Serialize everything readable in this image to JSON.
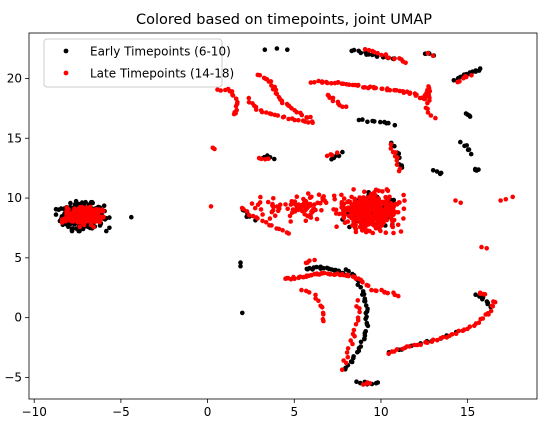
{
  "chart_data": {
    "type": "scatter",
    "title": "Colored based on timepoints, joint UMAP",
    "xlabel": "",
    "ylabel": "",
    "xlim": [
      -10.3,
      19.0
    ],
    "ylim": [
      -6.8,
      23.8
    ],
    "xticks": [
      -10,
      -5,
      0,
      5,
      10,
      15
    ],
    "yticks": [
      -5,
      0,
      5,
      10,
      15,
      20
    ],
    "xtick_labels": [
      "−10",
      "−5",
      "0",
      "5",
      "10",
      "15"
    ],
    "ytick_labels": [
      "−5",
      "0",
      "5",
      "10",
      "15",
      "20"
    ],
    "grid": false,
    "legend_position": "top-left",
    "series": [
      {
        "name": "Early Timepoints (6-10)",
        "color": "#000000",
        "clusters": [
          {
            "shape": "blob",
            "center": [
              -7.2,
              8.5
            ],
            "spread": [
              1.1,
              0.9
            ],
            "count": 320
          },
          {
            "shape": "blob",
            "center": [
              9.6,
              8.8
            ],
            "spread": [
              1.3,
              1.2
            ],
            "count": 110
          },
          {
            "shape": "points",
            "points": [
              [
                -4.4,
                8.4
              ],
              [
                2.0,
                0.4
              ],
              [
                1.9,
                4.6
              ],
              [
                1.9,
                4.3
              ],
              [
                3.3,
                22.4
              ],
              [
                4.0,
                22.5
              ],
              [
                4.6,
                22.4
              ]
            ]
          }
        ],
        "paths": [
          {
            "points": [
              [
                8.0,
                4.0
              ],
              [
                8.6,
                3.2
              ],
              [
                9.0,
                2.0
              ],
              [
                9.2,
                0.5
              ],
              [
                9.2,
                -1.0
              ],
              [
                8.8,
                -2.5
              ],
              [
                8.2,
                -3.8
              ],
              [
                7.8,
                -4.5
              ]
            ],
            "count": 40
          },
          {
            "points": [
              [
                5.6,
                4.0
              ],
              [
                6.5,
                4.2
              ],
              [
                7.6,
                3.9
              ],
              [
                8.0,
                3.5
              ]
            ],
            "count": 20
          },
          {
            "points": [
              [
                8.3,
                22.4
              ],
              [
                9.3,
                22.0
              ],
              [
                10.3,
                21.8
              ],
              [
                11.0,
                21.6
              ]
            ],
            "count": 16
          },
          {
            "points": [
              [
                12.5,
                22.1
              ],
              [
                13.0,
                22.0
              ]
            ],
            "count": 5
          },
          {
            "points": [
              [
                14.2,
                19.8
              ],
              [
                14.9,
                20.3
              ],
              [
                15.4,
                20.6
              ],
              [
                15.9,
                20.8
              ]
            ],
            "count": 14
          },
          {
            "points": [
              [
                15.5,
                2.0
              ],
              [
                16.0,
                1.5
              ],
              [
                16.4,
                0.8
              ]
            ],
            "count": 8
          },
          {
            "points": [
              [
                15.4,
                12.2
              ],
              [
                15.6,
                12.5
              ]
            ],
            "count": 4
          },
          {
            "points": [
              [
                8.6,
                16.6
              ],
              [
                9.4,
                16.4
              ],
              [
                10.3,
                16.3
              ],
              [
                10.9,
                16.1
              ]
            ],
            "count": 10
          },
          {
            "points": [
              [
                8.6,
                -5.4
              ],
              [
                9.4,
                -5.5
              ],
              [
                10.0,
                -5.4
              ]
            ],
            "count": 7
          },
          {
            "points": [
              [
                10.3,
                -3.0
              ],
              [
                11.3,
                -2.6
              ],
              [
                12.4,
                -2.1
              ],
              [
                13.6,
                -1.6
              ],
              [
                14.4,
                -1.2
              ]
            ],
            "count": 10
          },
          {
            "points": [
              [
                2.0,
                9.2
              ],
              [
                2.3,
                8.5
              ],
              [
                2.8,
                8.2
              ]
            ],
            "count": 6
          },
          {
            "points": [
              [
                14.6,
                14.7
              ],
              [
                15.1,
                14.0
              ],
              [
                15.3,
                13.6
              ]
            ],
            "count": 6
          },
          {
            "points": [
              [
                13.0,
                12.4
              ],
              [
                13.6,
                12.0
              ]
            ],
            "count": 4
          },
          {
            "points": [
              [
                14.8,
                17.2
              ],
              [
                15.2,
                16.7
              ]
            ],
            "count": 4
          },
          {
            "points": [
              [
                10.4,
                14.8
              ],
              [
                10.9,
                14.0
              ],
              [
                11.1,
                13.0
              ],
              [
                11.2,
                12.2
              ]
            ],
            "count": 9
          },
          {
            "points": [
              [
                7.0,
                13.2
              ],
              [
                7.6,
                13.6
              ],
              [
                7.8,
                13.9
              ]
            ],
            "count": 5
          },
          {
            "points": [
              [
                3.0,
                13.2
              ],
              [
                3.5,
                13.5
              ],
              [
                4.0,
                13.2
              ]
            ],
            "count": 5
          }
        ]
      },
      {
        "name": "Late Timepoints (14-18)",
        "color": "#ff0000",
        "clusters": [
          {
            "shape": "blob",
            "center": [
              -7.2,
              8.5
            ],
            "spread": [
              0.85,
              0.65
            ],
            "count": 260
          },
          {
            "shape": "blob",
            "center": [
              9.4,
              8.9
            ],
            "spread": [
              1.4,
              1.3
            ],
            "count": 420
          },
          {
            "shape": "blob",
            "center": [
              5.5,
              9.3
            ],
            "spread": [
              2.1,
              0.9
            ],
            "count": 90
          },
          {
            "shape": "points",
            "points": [
              [
                0.2,
                9.3
              ],
              [
                0.3,
                14.2
              ],
              [
                0.4,
                14.1
              ],
              [
                17.2,
                9.9
              ],
              [
                17.6,
                10.1
              ],
              [
                16.9,
                9.8
              ],
              [
                12.7,
                22.1
              ],
              [
                13.0,
                21.9
              ],
              [
                15.8,
                5.9
              ],
              [
                16.1,
                5.8
              ],
              [
                11.0,
                1.8
              ],
              [
                10.8,
                1.9
              ],
              [
                14.3,
                9.8
              ],
              [
                14.6,
                9.6
              ]
            ]
          }
        ],
        "paths": [
          {
            "points": [
              [
                0.5,
                19.0
              ],
              [
                1.3,
                19.1
              ],
              [
                1.6,
                18.3
              ],
              [
                1.7,
                17.5
              ],
              [
                1.5,
                16.8
              ]
            ],
            "count": 16
          },
          {
            "points": [
              [
                2.8,
                20.4
              ],
              [
                3.6,
                19.8
              ],
              [
                3.9,
                18.9
              ],
              [
                4.4,
                17.9
              ],
              [
                5.4,
                17.0
              ],
              [
                6.0,
                16.6
              ]
            ],
            "count": 28
          },
          {
            "points": [
              [
                2.3,
                18.3
              ],
              [
                3.0,
                17.3
              ],
              [
                4.5,
                16.7
              ],
              [
                5.8,
                16.4
              ],
              [
                6.3,
                16.2
              ]
            ],
            "count": 24
          },
          {
            "points": [
              [
                6.0,
                19.7
              ],
              [
                7.0,
                19.7
              ],
              [
                8.0,
                19.6
              ],
              [
                9.0,
                19.3
              ],
              [
                10.0,
                19.1
              ],
              [
                11.0,
                19.0
              ],
              [
                12.0,
                18.7
              ],
              [
                12.5,
                18.2
              ],
              [
                12.8,
                19.3
              ],
              [
                12.8,
                18.1
              ]
            ],
            "count": 60
          },
          {
            "points": [
              [
                6.8,
                18.7
              ],
              [
                7.4,
                18.0
              ],
              [
                8.0,
                17.5
              ]
            ],
            "count": 10
          },
          {
            "points": [
              [
                9.0,
                22.4
              ],
              [
                10.0,
                22.0
              ],
              [
                11.0,
                21.6
              ],
              [
                11.6,
                21.3
              ]
            ],
            "count": 14
          },
          {
            "points": [
              [
                14.3,
                19.6
              ],
              [
                14.8,
                20.1
              ],
              [
                15.3,
                20.4
              ]
            ],
            "count": 6
          },
          {
            "points": [
              [
                4.4,
                3.2
              ],
              [
                5.5,
                3.4
              ],
              [
                6.6,
                3.7
              ],
              [
                7.8,
                3.6
              ],
              [
                8.6,
                3.3
              ]
            ],
            "count": 36
          },
          {
            "points": [
              [
                5.3,
                2.4
              ],
              [
                6.2,
                1.9
              ],
              [
                6.6,
                1.0
              ],
              [
                6.6,
                0.3
              ],
              [
                6.8,
                -0.6
              ]
            ],
            "count": 12
          },
          {
            "points": [
              [
                8.6,
                3.4
              ],
              [
                9.4,
                2.4
              ],
              [
                10.2,
                2.2
              ],
              [
                10.8,
                2.0
              ]
            ],
            "count": 14
          },
          {
            "points": [
              [
                8.6,
                1.4
              ],
              [
                8.8,
                0.2
              ],
              [
                8.5,
                -1.2
              ],
              [
                8.2,
                -2.5
              ],
              [
                7.9,
                -3.8
              ],
              [
                7.8,
                -4.4
              ]
            ],
            "count": 18
          },
          {
            "points": [
              [
                10.4,
                -3.0
              ],
              [
                11.0,
                -2.7
              ],
              [
                12.0,
                -2.3
              ],
              [
                13.0,
                -1.9
              ],
              [
                14.0,
                -1.5
              ],
              [
                14.8,
                -1.0
              ],
              [
                15.7,
                -0.3
              ],
              [
                16.3,
                0.6
              ],
              [
                16.6,
                1.5
              ]
            ],
            "count": 40
          },
          {
            "points": [
              [
                15.6,
                2.0
              ],
              [
                16.0,
                1.9
              ]
            ],
            "count": 4
          },
          {
            "points": [
              [
                8.9,
                -5.5
              ],
              [
                9.5,
                -5.5
              ]
            ],
            "count": 4
          },
          {
            "points": [
              [
                5.6,
                4.5
              ],
              [
                6.2,
                4.8
              ]
            ],
            "count": 4
          },
          {
            "points": [
              [
                2.0,
                9.3
              ],
              [
                2.2,
                8.9
              ],
              [
                2.6,
                8.5
              ],
              [
                3.2,
                8.0
              ],
              [
                4.2,
                7.4
              ],
              [
                4.8,
                7.0
              ]
            ],
            "count": 16
          },
          {
            "points": [
              [
                10.5,
                14.6
              ],
              [
                10.8,
                13.6
              ],
              [
                11.0,
                12.8
              ],
              [
                11.1,
                12.1
              ]
            ],
            "count": 10
          },
          {
            "points": [
              [
                6.8,
                13.4
              ],
              [
                7.6,
                13.8
              ]
            ],
            "count": 4
          },
          {
            "points": [
              [
                3.0,
                13.4
              ],
              [
                3.6,
                13.2
              ]
            ],
            "count": 4
          },
          {
            "points": [
              [
                12.6,
                18.0
              ],
              [
                12.8,
                17.1
              ],
              [
                13.2,
                16.6
              ]
            ],
            "count": 6
          }
        ]
      }
    ]
  }
}
